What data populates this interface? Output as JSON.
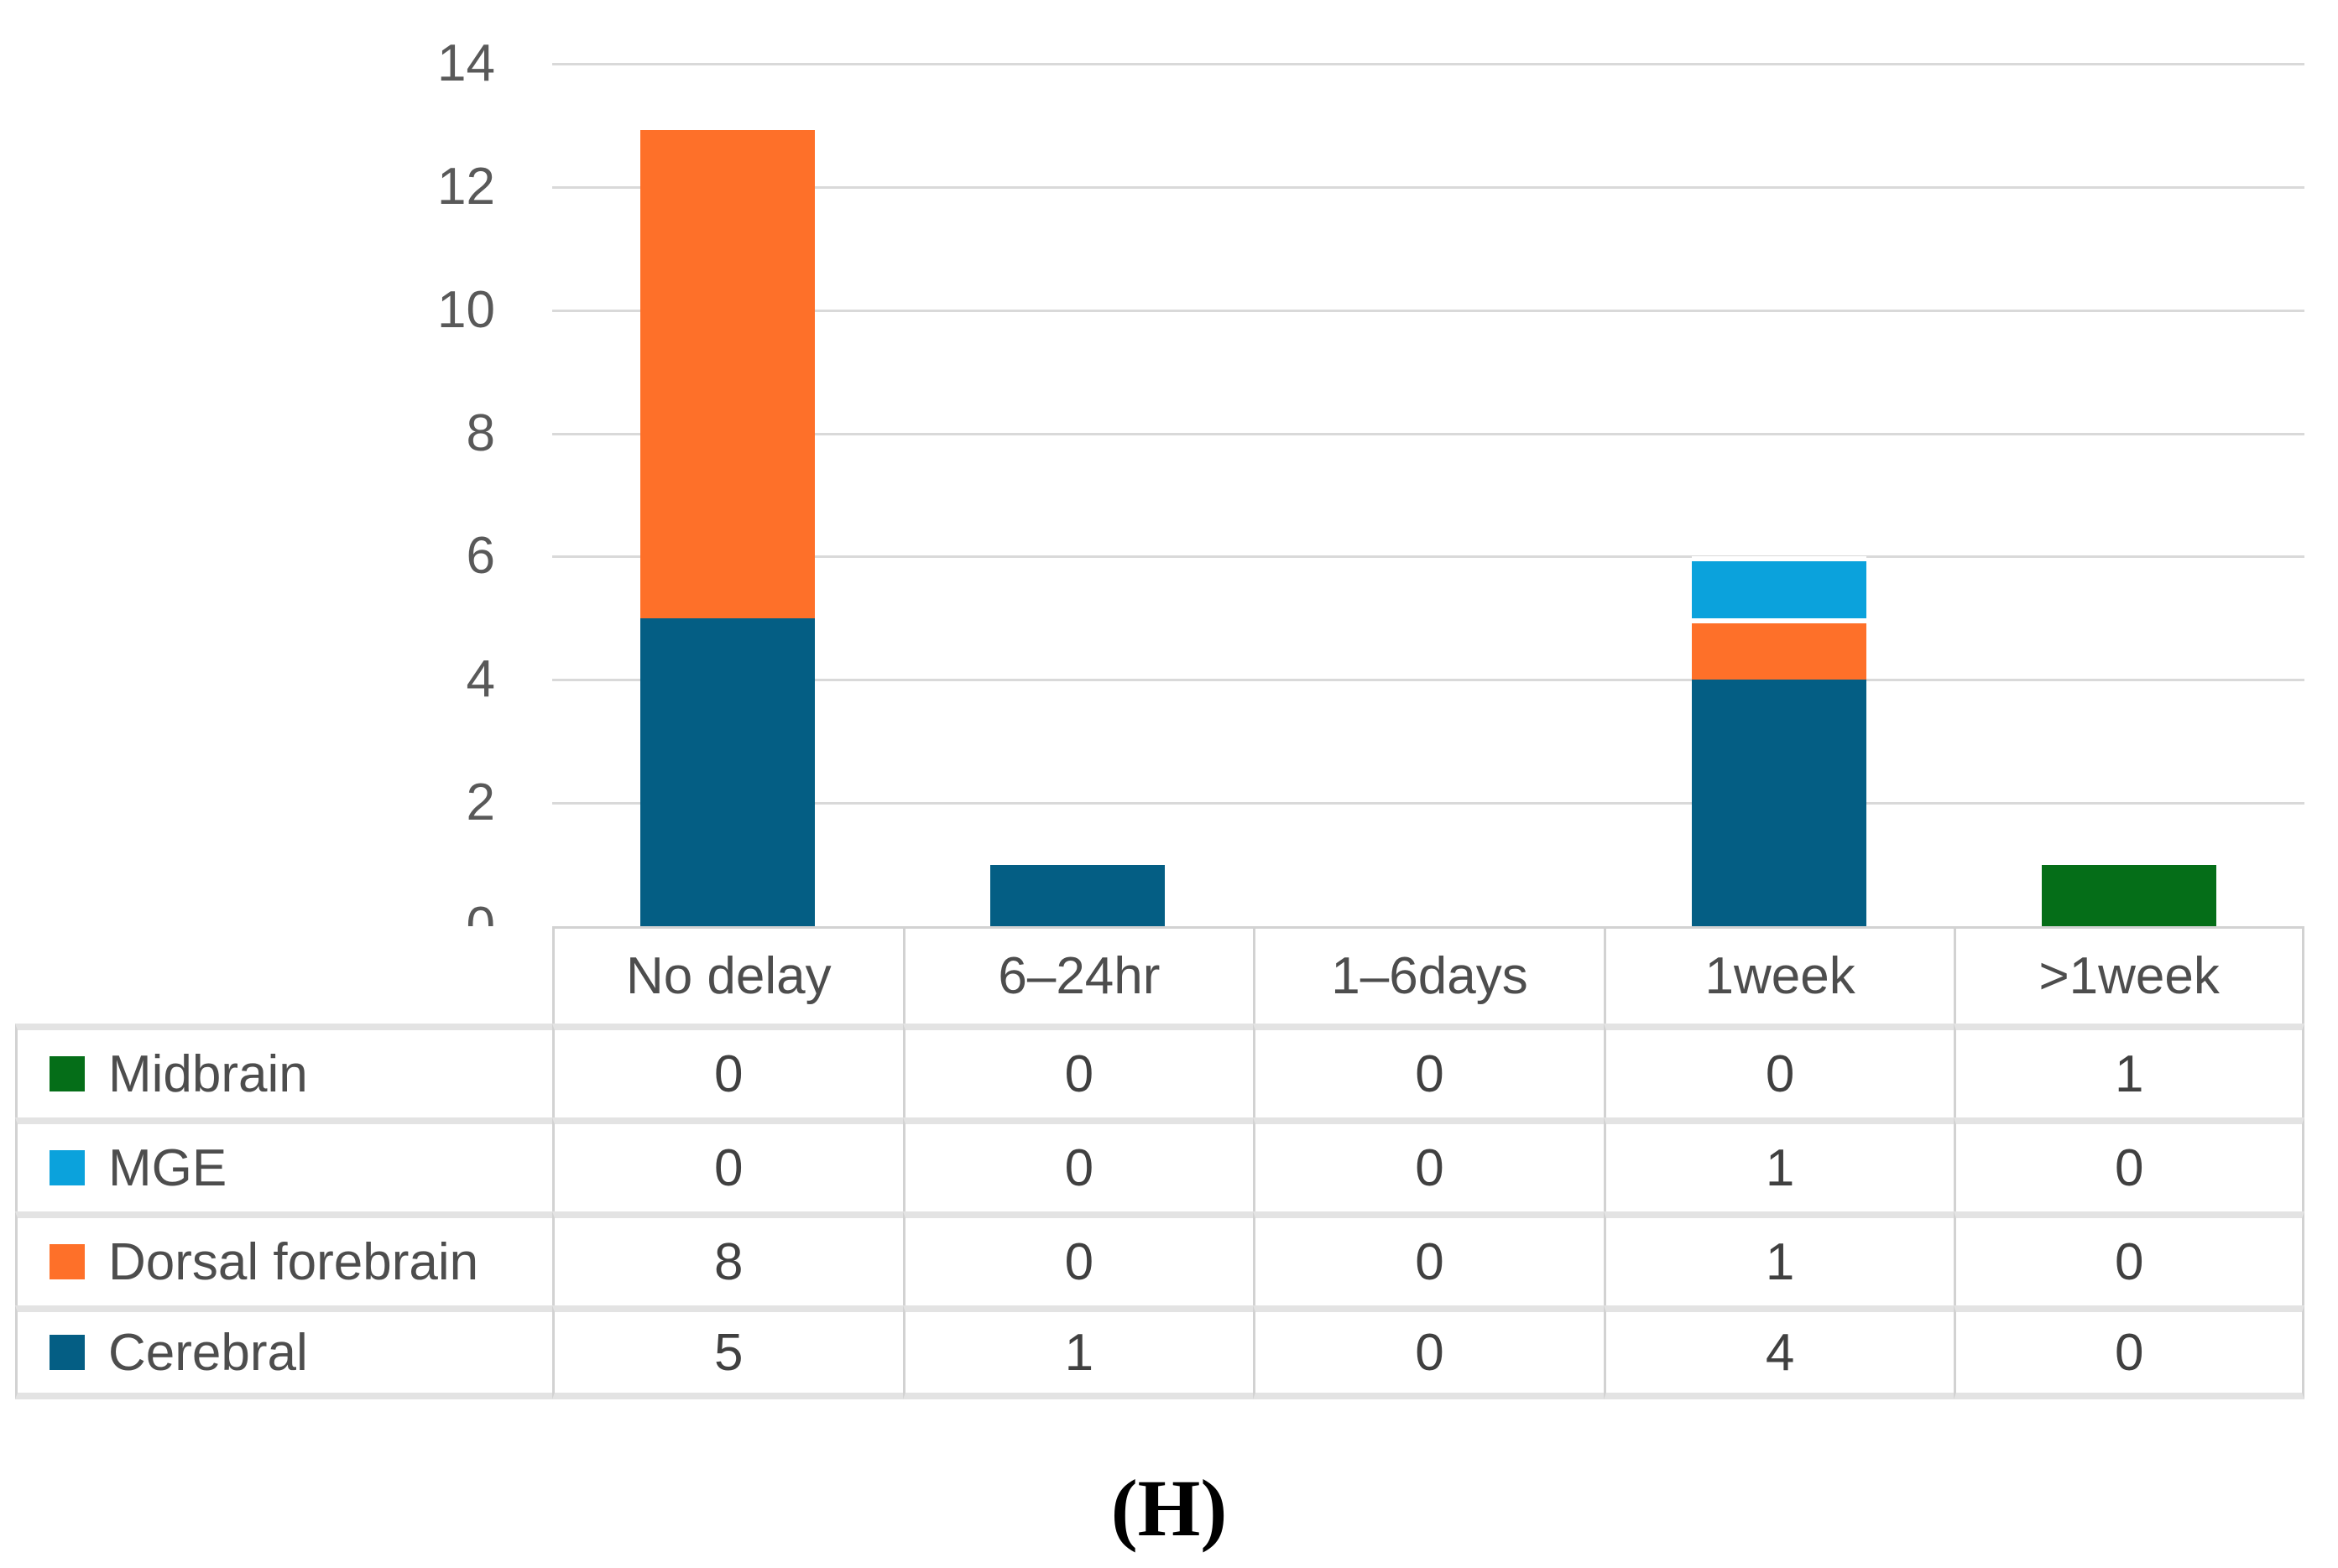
{
  "caption": "(H)",
  "colors": {
    "gridline": "#d9d9d9",
    "axis_text": "#595959",
    "table_text": "#404040",
    "vertical_border": "#d2d2d2",
    "horizontal_border": "#e3e3e3",
    "segment_separator": "#ffffff"
  },
  "chart_data": {
    "type": "bar",
    "stacked": true,
    "title": "",
    "xlabel": "",
    "ylabel": "",
    "grid": true,
    "legend_position": "table-left",
    "categories": [
      "No delay",
      "6–24hr",
      "1–6days",
      "1week",
      ">1week"
    ],
    "series": [
      {
        "name": "Midbrain",
        "color": "#056e18",
        "values": [
          0,
          0,
          0,
          0,
          1
        ]
      },
      {
        "name": "MGE",
        "color": "#0ba2dc",
        "values": [
          0,
          0,
          0,
          1,
          0
        ]
      },
      {
        "name": "Dorsal forebrain",
        "color": "#fe7029",
        "values": [
          8,
          0,
          0,
          1,
          0
        ]
      },
      {
        "name": "Cerebral",
        "color": "#045e84",
        "values": [
          5,
          1,
          0,
          4,
          0
        ]
      }
    ],
    "ylim": [
      0,
      14
    ],
    "ytick_step": 2,
    "yticks": [
      0,
      2,
      4,
      6,
      8,
      10,
      12,
      14
    ]
  }
}
